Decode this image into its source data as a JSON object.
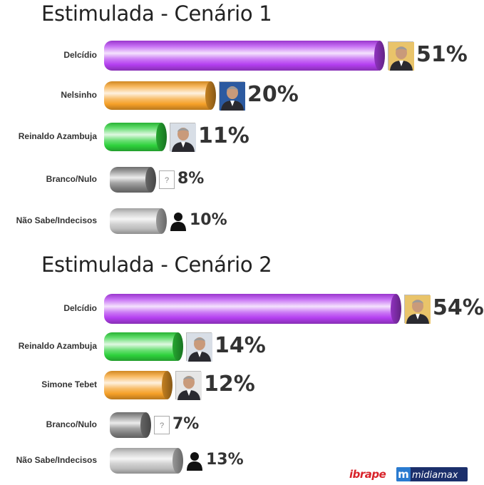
{
  "chart_data": [
    {
      "type": "bar",
      "orientation": "horizontal",
      "title": "Estimulada - Cenário 1",
      "categories": [
        "Delcídio",
        "Nelsinho",
        "Reinaldo Azambuja",
        "Branco/Nulo",
        "Não Sabe/Indecisos"
      ],
      "values": [
        51,
        20,
        11,
        8,
        10
      ],
      "value_labels": [
        "51%",
        "20%",
        "11%",
        "8%",
        "10%"
      ],
      "colors": [
        "#b43ff0",
        "#f5a028",
        "#2ed13c",
        "#808080",
        "#bdbdbd"
      ],
      "markers": [
        "candidate-photo",
        "candidate-photo",
        "candidate-photo",
        "question-box-icon",
        "person-icon"
      ]
    },
    {
      "type": "bar",
      "orientation": "horizontal",
      "title": "Estimulada - Cenário 2",
      "categories": [
        "Delcídio",
        "Reinaldo Azambuja",
        "Simone Tebet",
        "Branco/Nulo",
        "Não Sabe/Indecisos"
      ],
      "values": [
        54,
        14,
        12,
        7,
        13
      ],
      "value_labels": [
        "54%",
        "14%",
        "12%",
        "7%",
        "13%"
      ],
      "colors": [
        "#b43ff0",
        "#2ed13c",
        "#f5a028",
        "#808080",
        "#bdbdbd"
      ],
      "markers": [
        "candidate-photo",
        "candidate-photo",
        "candidate-photo",
        "question-box-icon",
        "person-icon"
      ]
    }
  ],
  "question_mark": "?",
  "logos": {
    "ibrape": "ibrape",
    "midiamax_symbol": "m",
    "midiamax": "midiamax"
  }
}
